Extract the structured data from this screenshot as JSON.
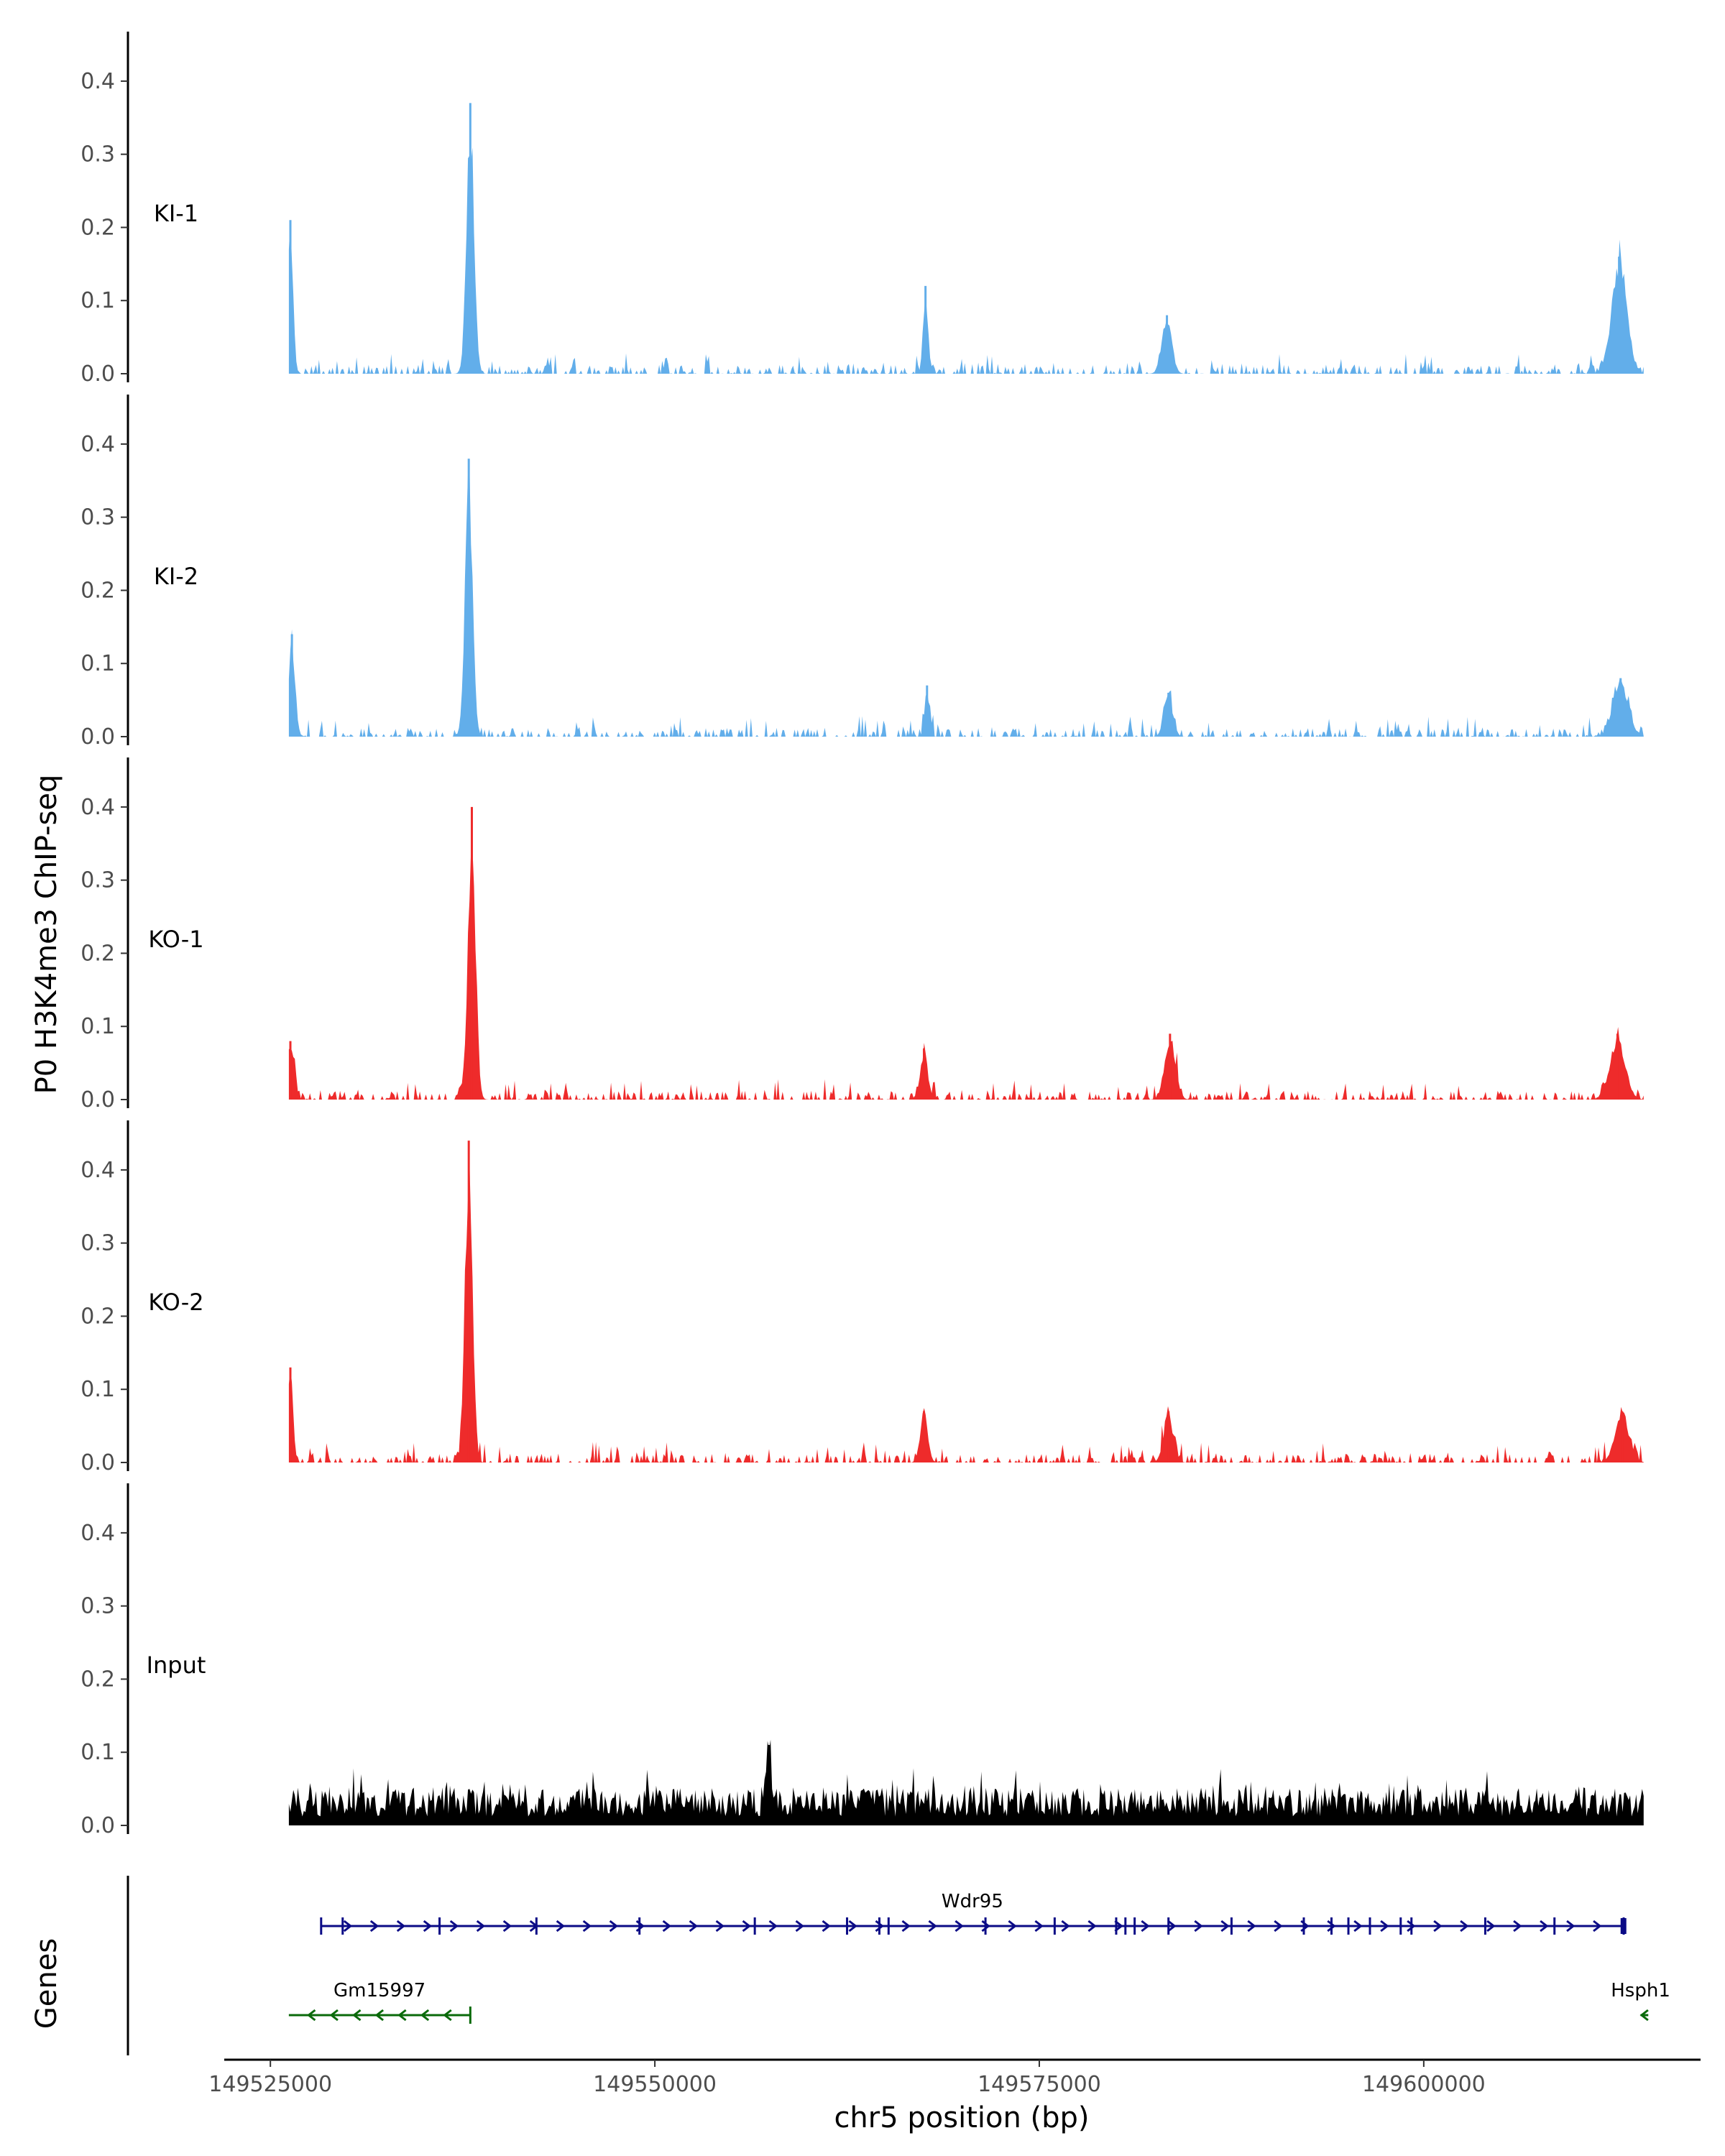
{
  "chart_data": {
    "type": "area",
    "title": "",
    "ylabel": "P0 H3K4me3 ChIP-seq",
    "xlabel": "chr5 position (bp)",
    "xlim": [
      149522000,
      149618000
    ],
    "ylim": [
      0,
      0.45
    ],
    "y_ticks": [
      0.0,
      0.1,
      0.2,
      0.3,
      0.4
    ],
    "y_tick_labels": [
      "0.0",
      "0.1",
      "0.2",
      "0.3",
      "0.4"
    ],
    "x_ticks": [
      149525000,
      149550000,
      149575000,
      149600000
    ],
    "x_tick_labels": [
      "149525000",
      "149550000",
      "149575000",
      "149600000"
    ],
    "data_range": [
      149526200,
      149614300
    ],
    "tracks": [
      {
        "name": "KI-1",
        "color": "#62aeea",
        "peaks": [
          [
            149526300,
            0.21,
            250
          ],
          [
            149538000,
            0.37,
            350
          ],
          [
            149567600,
            0.12,
            220
          ],
          [
            149583300,
            0.08,
            450
          ],
          [
            149612700,
            0.16,
            700
          ]
        ]
      },
      {
        "name": "KI-2",
        "color": "#62aeea",
        "peaks": [
          [
            149526400,
            0.14,
            300
          ],
          [
            149537900,
            0.38,
            350
          ],
          [
            149567700,
            0.07,
            220
          ],
          [
            149583400,
            0.06,
            400
          ],
          [
            149612800,
            0.08,
            700
          ]
        ]
      },
      {
        "name": "KO-1",
        "color": "#ee2b2b",
        "peaks": [
          [
            149526300,
            0.08,
            350
          ],
          [
            149538100,
            0.4,
            350
          ],
          [
            149567500,
            0.07,
            350
          ],
          [
            149583500,
            0.09,
            500
          ],
          [
            149612600,
            0.09,
            700
          ]
        ]
      },
      {
        "name": "KO-2",
        "color": "#ee2b2b",
        "peaks": [
          [
            149526300,
            0.13,
            250
          ],
          [
            149537900,
            0.44,
            350
          ],
          [
            149567500,
            0.07,
            350
          ],
          [
            149583400,
            0.07,
            450
          ],
          [
            149612900,
            0.07,
            650
          ]
        ]
      },
      {
        "name": "Input",
        "color": "#000000",
        "peaks": [
          [
            149557400,
            0.11,
            200
          ]
        ]
      }
    ],
    "genes_label": "Genes",
    "genes": [
      {
        "name": "Wdr95",
        "start": 149528300,
        "end": 149613000,
        "strand": "+",
        "color": "#0b0b86"
      },
      {
        "name": "Gm15997",
        "start": 149526200,
        "end": 149538000,
        "strand": "-",
        "color": "#0a6a0a"
      },
      {
        "name": "Hsph1",
        "start": 149614100,
        "end": 149614600,
        "strand": "-",
        "color": "#0a6a0a"
      }
    ]
  }
}
